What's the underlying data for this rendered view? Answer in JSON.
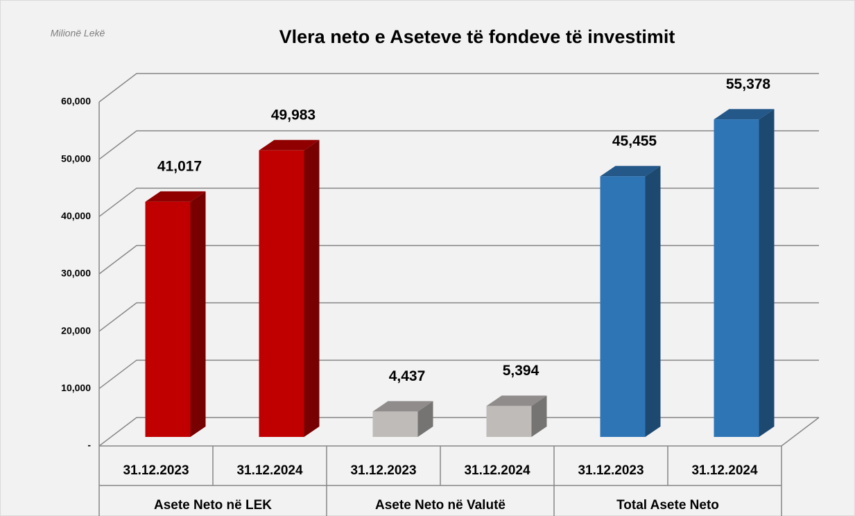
{
  "chart_data": {
    "type": "bar3d",
    "title": "Vlera neto e Aseteve të fondeve të investimit",
    "unit_label": "Milionë Lekë",
    "categories": [
      "31.12.2023",
      "31.12.2024",
      "31.12.2023",
      "31.12.2024",
      "31.12.2023",
      "31.12.2024"
    ],
    "groups": [
      "Asete Neto në LEK",
      "Asete Neto në Valutë",
      "Total Asete Neto"
    ],
    "values": [
      41017,
      49983,
      4437,
      5394,
      45455,
      55378
    ],
    "value_labels": [
      "41,017",
      "49,983",
      "4,437",
      "5,394",
      "45,455",
      "55,378"
    ],
    "colors": [
      "#c00000",
      "#c00000",
      "#bfbbb9",
      "#bfbbb9",
      "#2e75b6",
      "#2e75b6"
    ],
    "ylim": [
      0,
      60000
    ],
    "yticks": [
      {
        "value": 0,
        "label": "-"
      },
      {
        "value": 10000,
        "label": "10,000"
      },
      {
        "value": 20000,
        "label": "20,000"
      },
      {
        "value": 30000,
        "label": "30,000"
      },
      {
        "value": 40000,
        "label": "40,000"
      },
      {
        "value": 50000,
        "label": "50,000"
      },
      {
        "value": 60000,
        "label": "60,000"
      }
    ],
    "grid": true
  }
}
